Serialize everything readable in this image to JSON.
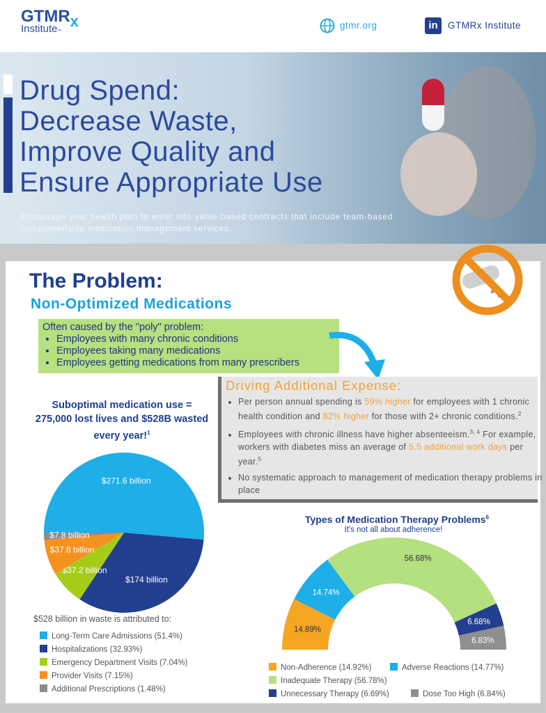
{
  "header": {
    "logo": {
      "brand": "GTMR",
      "rx": "x",
      "sub": "Institute",
      "tm": "™"
    },
    "website": "gtmr.org",
    "linkedin_icon": "in",
    "linkedin": "GTMRx Institute"
  },
  "hero": {
    "title_lines": [
      "Drug Spend:",
      "Decrease Waste,",
      "Improve Quality and",
      "Ensure Appropriate Use"
    ],
    "subtitle": "Encourage your health plan to enter into value-based contracts that include team-based comprehensive medication management services."
  },
  "problem": {
    "title": "The Problem:",
    "subtitle": "Non-Optimized Medications",
    "intro": "Often caused by the \"poly\" problem:",
    "bullets": [
      "Employees with many chronic conditions",
      "Employees taking many medications",
      "Employees getting medications from many prescribers"
    ]
  },
  "expense": {
    "title": "Driving Additional Expense:",
    "bullets": [
      [
        "Per person annual spending is ",
        "59% higher",
        " for employees with 1 chronic health condition and ",
        "82% higher",
        " for those with 2+ chronic conditions.",
        "2"
      ],
      [
        "Employees with chronic illness have higher absenteeism.",
        "3, 4",
        " For example, workers with diabetes miss an average of ",
        "5.5 additional work days",
        " per year.",
        "5"
      ],
      [
        "No systematic approach to management of medication therapy problems in place"
      ]
    ]
  },
  "chart_data": [
    {
      "type": "pie",
      "title": "Suboptimal medication use = 275,000 lost lives and $528B wasted every year!",
      "title_note": "1",
      "caption": "$528 billion in waste is attributed to:",
      "categories": [
        "Long-Term Care Admissions (51.4%)",
        "Hospitalizations (32.93%)",
        "Emergency Department Visits (7.04%)",
        "Provider Visits (7.15%)",
        "Additional Prescriptions (1.48%)"
      ],
      "values": [
        271.6,
        174,
        37.2,
        37.8,
        7.8
      ],
      "value_labels": [
        "$271.6 billion",
        "$174 billion",
        "$37.2 billion",
        "$37.8 billion",
        "$7.8 billion"
      ],
      "colors": [
        "#1eaee8",
        "#233f8f",
        "#a6cc1a",
        "#f5921f",
        "#8c8c8c"
      ]
    },
    {
      "type": "donut",
      "title": "Types of Medication Therapy Problems",
      "title_note": "6",
      "subtitle": "It's not all about adherence!",
      "categories": [
        "Non-Adherence (14.92%)",
        "Adverse Reactions (14.77%)",
        "Inadequate Therapy (56.78%)",
        "Unnecessary Therapy (6.69%)",
        "Dose Too High (6.84%)"
      ],
      "values": [
        14.89,
        14.74,
        56.68,
        6.68,
        6.83
      ],
      "value_labels": [
        "14.89%",
        "14.74%",
        "56.68%",
        "6.68%",
        "6.83%"
      ],
      "colors": [
        "#f5a623",
        "#1eaee8",
        "#b5e07f",
        "#233f8f",
        "#8f8f8f"
      ]
    }
  ]
}
